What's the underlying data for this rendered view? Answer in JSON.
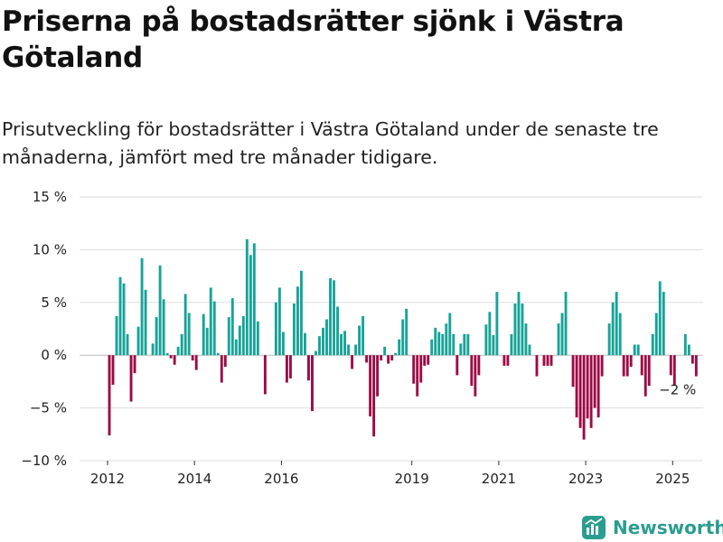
{
  "title": "Priserna på bostadsrätter sjönk i Västra Götaland",
  "subtitle": "Prisutveckling för bostadsrätter i Västra Götaland under de senaste tre månaderna, jämfört med tre månader tidigare.",
  "brand": "Newsworthy",
  "colors": {
    "positive": "#17a398",
    "negative": "#9c0a45",
    "grid": "#dddddd",
    "brand": "#2a9d8f"
  },
  "chart_data": {
    "type": "bar",
    "title": "",
    "xlabel": "",
    "ylabel": "",
    "ylim": [
      -10,
      15
    ],
    "yticks": [
      15,
      10,
      5,
      0,
      -5,
      -10
    ],
    "ytick_labels": [
      "15 %",
      "10 %",
      "5 %",
      "0 %",
      "−5 %",
      "−10 %"
    ],
    "xticks": [
      "2012",
      "2014",
      "2016",
      "2019",
      "2021",
      "2023",
      "2025"
    ],
    "xtick_positions": [
      2012.0,
      2014.0,
      2016.0,
      2019.0,
      2021.0,
      2023.0,
      2025.0
    ],
    "grid": true,
    "annotation": {
      "text": "−2 %",
      "x": 2025.0,
      "y": -2
    },
    "series": [
      {
        "period_start": "2012-01",
        "step_months": 1,
        "values": [
          -7.6,
          -2.8,
          3.7,
          7.4,
          6.8,
          2.0,
          -4.4,
          -1.7,
          2.7,
          9.2,
          6.2,
          0.0,
          1.1,
          3.6,
          8.5,
          5.3,
          0.2,
          -0.3,
          -0.9,
          0.8,
          2.0,
          5.8,
          4.0,
          -0.5,
          -1.4,
          0.0,
          3.9,
          2.6,
          6.4,
          5.1,
          0.2,
          -2.6,
          -1.1,
          3.6,
          5.4,
          1.5,
          2.8,
          3.7,
          11.0,
          9.5,
          10.6,
          3.2,
          0.0,
          -3.7,
          0.0,
          0.0,
          5.0,
          6.4,
          2.2,
          -2.6,
          -2.2,
          4.9,
          6.5,
          8.0,
          2.1,
          -2.4,
          -5.3,
          0.4,
          1.8,
          2.6,
          3.4,
          7.3,
          7.1,
          4.6,
          2.0,
          2.3,
          1.0,
          -1.3,
          1.0,
          2.8,
          3.7,
          -0.7,
          -5.8,
          -7.7,
          -3.9,
          -0.5,
          0.8,
          -0.8,
          -0.5,
          0.2,
          1.5,
          3.4,
          4.4,
          0.0,
          -2.7,
          -3.9,
          -2.6,
          -1.0,
          -0.9,
          1.5,
          2.6,
          2.2,
          2.0,
          3.0,
          4.0,
          2.0,
          -1.9,
          1.1,
          2.0,
          2.0,
          -2.9,
          -3.9,
          -1.9,
          0.0,
          2.9,
          4.1,
          1.9,
          6.0,
          0.0,
          -1.0,
          -1.0,
          2.0,
          4.9,
          6.0,
          4.9,
          3.0,
          1.0,
          0.0,
          -2.0,
          0.0,
          -1.0,
          -1.0,
          -1.0,
          0.0,
          3.0,
          4.0,
          6.0,
          0.0,
          -3.0,
          -5.9,
          -6.9,
          -8.0,
          -6.0,
          -6.9,
          -5.0,
          -5.9,
          -2.0,
          0.0,
          3.0,
          5.0,
          6.0,
          4.0,
          -2.0,
          -2.0,
          -1.1,
          1.0,
          1.0,
          -1.9,
          -3.9,
          -2.9,
          2.0,
          4.0,
          7.0,
          6.0,
          0.0,
          -1.9,
          -2.9,
          0.0,
          0.0,
          2.0,
          1.0,
          -0.8,
          -2.0
        ]
      }
    ]
  }
}
